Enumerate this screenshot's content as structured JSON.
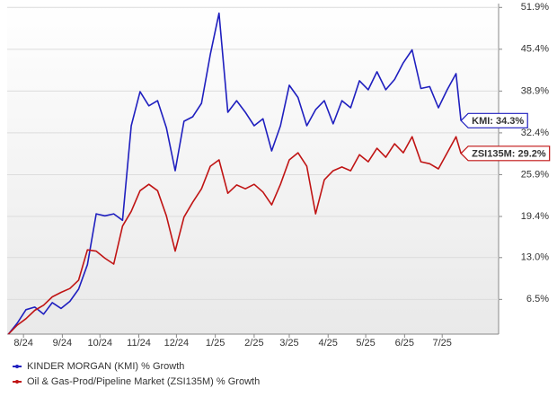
{
  "chart_data": {
    "type": "line",
    "x": [
      0,
      7,
      14,
      21,
      28,
      35,
      42,
      49,
      56,
      63,
      70,
      77,
      84,
      91,
      98,
      105,
      112,
      119,
      126,
      133,
      140,
      147,
      154,
      161,
      168,
      175,
      182,
      189,
      196,
      203,
      210,
      217,
      224,
      231,
      238,
      245,
      252,
      259,
      266,
      273,
      280,
      287,
      294,
      301,
      308,
      315,
      322,
      329,
      336,
      343,
      350,
      357,
      361
    ],
    "xlim": [
      -1,
      391
    ],
    "xticks": [
      {
        "value": 12,
        "label": "8/24"
      },
      {
        "value": 43,
        "label": "9/24"
      },
      {
        "value": 73,
        "label": "10/24"
      },
      {
        "value": 104,
        "label": "11/24"
      },
      {
        "value": 134,
        "label": "12/24"
      },
      {
        "value": 165,
        "label": "1/25"
      },
      {
        "value": 196,
        "label": "2/25"
      },
      {
        "value": 224,
        "label": "3/25"
      },
      {
        "value": 255,
        "label": "4/25"
      },
      {
        "value": 285,
        "label": "5/25"
      },
      {
        "value": 316,
        "label": "6/25"
      },
      {
        "value": 346,
        "label": "7/25"
      }
    ],
    "ylim": [
      1.1,
      52.5
    ],
    "yticks": [
      {
        "value": 6.5,
        "label": "6.5%"
      },
      {
        "value": 13.0,
        "label": "13.0%"
      },
      {
        "value": 19.4,
        "label": "19.4%"
      },
      {
        "value": 25.9,
        "label": "25.9%"
      },
      {
        "value": 32.4,
        "label": "32.4%"
      },
      {
        "value": 38.9,
        "label": "38.9%"
      },
      {
        "value": 45.4,
        "label": "45.4%"
      },
      {
        "value": 51.9,
        "label": "51.9%"
      }
    ],
    "grid": true,
    "series": [
      {
        "name": "KINDER MORGAN (KMI) % Growth",
        "color": "#1f1fbf",
        "end_label": "KMI: 34.3%",
        "values": [
          1.1,
          2.8,
          4.9,
          5.3,
          4.2,
          6.0,
          5.1,
          6.2,
          8.1,
          11.9,
          19.8,
          19.5,
          19.8,
          18.8,
          33.5,
          38.8,
          36.6,
          37.4,
          33.2,
          26.5,
          34.2,
          34.9,
          37.0,
          44.6,
          51.0,
          35.6,
          37.4,
          35.6,
          33.5,
          34.6,
          29.6,
          33.5,
          39.8,
          37.9,
          33.5,
          36.0,
          37.4,
          33.8,
          37.4,
          36.3,
          40.5,
          39.1,
          41.9,
          39.1,
          40.7,
          43.3,
          45.3,
          39.3,
          39.6,
          36.3,
          39.1,
          41.6,
          34.3
        ]
      },
      {
        "name": "Oil & Gas-Prod/Pipeline Market (ZSI135M) % Growth",
        "color": "#c01414",
        "end_label": "ZSI135M: 29.2%",
        "values": [
          1.1,
          2.5,
          3.5,
          4.8,
          5.6,
          6.9,
          7.6,
          8.2,
          9.5,
          14.2,
          14.0,
          12.9,
          12.0,
          17.9,
          20.2,
          23.4,
          24.4,
          23.4,
          19.5,
          14.0,
          19.3,
          21.6,
          23.7,
          27.2,
          28.2,
          23.0,
          24.3,
          23.7,
          24.4,
          23.2,
          21.2,
          24.4,
          28.2,
          29.3,
          27.2,
          19.8,
          25.1,
          26.5,
          27.1,
          26.5,
          29.0,
          27.9,
          30.0,
          28.6,
          30.7,
          29.3,
          31.8,
          27.9,
          27.6,
          26.8,
          29.3,
          31.8,
          29.2
        ]
      }
    ]
  }
}
